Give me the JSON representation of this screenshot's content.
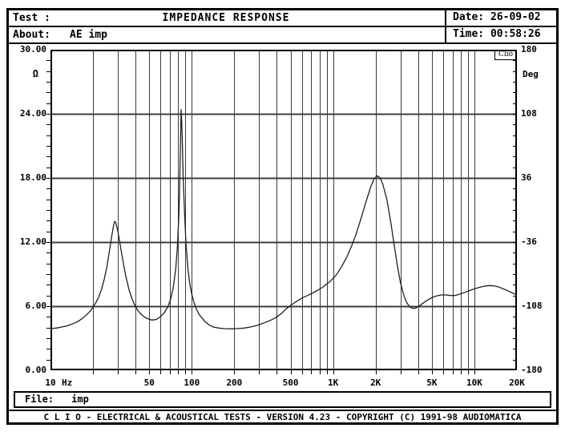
{
  "window": {
    "header": {
      "test_label": "Test :",
      "title": "IMPEDANCE RESPONSE",
      "date_label": "Date:",
      "date_value": "26-09-02",
      "about_label": "About:",
      "about_value": "AE imp",
      "time_label": "Time:",
      "time_value": "00:58:26"
    },
    "file_bar": {
      "label": "File:",
      "value": "imp"
    },
    "status_bar": {
      "text": "C L I O  -  ELECTRICAL & ACOUSTICAL TESTS  -  VERSION 4.23  -  COPYRIGHT (C) 1991-98 AUDIOMATICA"
    },
    "watermark": "Clio"
  },
  "colors": {
    "background": "#ffffff",
    "foreground": "#000000",
    "grid": "#3c3c3c",
    "curve": "#1f1f1f"
  },
  "chart_data": {
    "type": "line",
    "title": "IMPEDANCE RESPONSE",
    "xlabel": "Hz",
    "x_axis": {
      "scale": "log",
      "min": 10,
      "max": 20000,
      "unit": "Hz",
      "tick_values": [
        10,
        50,
        100,
        200,
        500,
        1000,
        2000,
        5000,
        10000,
        20000
      ],
      "tick_labels": [
        "10",
        "50",
        "100",
        "200",
        "500",
        "1K",
        "2K",
        "5K",
        "10K",
        "20K"
      ],
      "gridline_values": [
        20,
        30,
        40,
        50,
        60,
        70,
        80,
        90,
        100,
        200,
        300,
        400,
        500,
        600,
        700,
        800,
        900,
        1000,
        2000,
        3000,
        4000,
        5000,
        6000,
        7000,
        8000,
        9000,
        10000
      ]
    },
    "y_left": {
      "unit": "Ω",
      "min": 0,
      "max": 30,
      "tick_values": [
        30,
        24,
        18,
        12,
        6,
        0
      ],
      "tick_labels": [
        "30.00",
        "24.00",
        "18.00",
        "12.00",
        "6.00",
        "0.00"
      ],
      "minor_step": 1
    },
    "y_right": {
      "unit": "Deg",
      "min": -180,
      "max": 180,
      "tick_values": [
        180,
        108,
        36,
        -36,
        -108,
        -180
      ],
      "tick_labels": [
        "180",
        "108",
        "36",
        "-36",
        "-108",
        "-180"
      ],
      "minor_step": 12
    },
    "grid": true,
    "legend": "none",
    "series": [
      {
        "name": "impedance-magnitude",
        "unit": "ohm",
        "points": [
          [
            10,
            3.9
          ],
          [
            11,
            3.95
          ],
          [
            12,
            4.05
          ],
          [
            13,
            4.15
          ],
          [
            14,
            4.3
          ],
          [
            15,
            4.45
          ],
          [
            16,
            4.65
          ],
          [
            17,
            4.9
          ],
          [
            18,
            5.2
          ],
          [
            19,
            5.5
          ],
          [
            20,
            5.9
          ],
          [
            21,
            6.35
          ],
          [
            22,
            6.9
          ],
          [
            23,
            7.6
          ],
          [
            24,
            8.5
          ],
          [
            25,
            9.6
          ],
          [
            26,
            11.0
          ],
          [
            27,
            12.4
          ],
          [
            28,
            13.6
          ],
          [
            28.5,
            13.95
          ],
          [
            29,
            13.8
          ],
          [
            30,
            13.0
          ],
          [
            31,
            11.9
          ],
          [
            32,
            10.8
          ],
          [
            33,
            9.8
          ],
          [
            34,
            8.9
          ],
          [
            36,
            7.5
          ],
          [
            38,
            6.6
          ],
          [
            40,
            5.95
          ],
          [
            42,
            5.5
          ],
          [
            45,
            5.1
          ],
          [
            48,
            4.85
          ],
          [
            52,
            4.7
          ],
          [
            56,
            4.75
          ],
          [
            60,
            5.0
          ],
          [
            64,
            5.4
          ],
          [
            68,
            6.0
          ],
          [
            71,
            6.7
          ],
          [
            74,
            7.8
          ],
          [
            77,
            9.5
          ],
          [
            79,
            11.5
          ],
          [
            81,
            14.5
          ],
          [
            82,
            17.0
          ],
          [
            83,
            20.5
          ],
          [
            84,
            24.4
          ],
          [
            85,
            23.0
          ],
          [
            86,
            20.5
          ],
          [
            87,
            18.0
          ],
          [
            89,
            14.5
          ],
          [
            91,
            11.8
          ],
          [
            94,
            9.4
          ],
          [
            97,
            8.0
          ],
          [
            100,
            7.1
          ],
          [
            104,
            6.3
          ],
          [
            108,
            5.7
          ],
          [
            113,
            5.2
          ],
          [
            118,
            4.9
          ],
          [
            124,
            4.55
          ],
          [
            132,
            4.25
          ],
          [
            142,
            4.05
          ],
          [
            155,
            3.95
          ],
          [
            170,
            3.9
          ],
          [
            190,
            3.88
          ],
          [
            210,
            3.9
          ],
          [
            235,
            3.95
          ],
          [
            260,
            4.05
          ],
          [
            290,
            4.2
          ],
          [
            320,
            4.4
          ],
          [
            350,
            4.6
          ],
          [
            390,
            4.9
          ],
          [
            430,
            5.3
          ],
          [
            470,
            5.8
          ],
          [
            510,
            6.15
          ],
          [
            560,
            6.5
          ],
          [
            610,
            6.8
          ],
          [
            660,
            7.0
          ],
          [
            710,
            7.2
          ],
          [
            780,
            7.5
          ],
          [
            850,
            7.8
          ],
          [
            950,
            8.3
          ],
          [
            1050,
            8.9
          ],
          [
            1150,
            9.7
          ],
          [
            1250,
            10.6
          ],
          [
            1350,
            11.6
          ],
          [
            1450,
            12.7
          ],
          [
            1550,
            13.9
          ],
          [
            1650,
            15.1
          ],
          [
            1750,
            16.2
          ],
          [
            1850,
            17.2
          ],
          [
            1950,
            17.9
          ],
          [
            2050,
            18.2
          ],
          [
            2150,
            18.0
          ],
          [
            2250,
            17.4
          ],
          [
            2400,
            16.0
          ],
          [
            2550,
            14.0
          ],
          [
            2700,
            11.8
          ],
          [
            2850,
            9.8
          ],
          [
            3000,
            8.2
          ],
          [
            3150,
            7.1
          ],
          [
            3300,
            6.4
          ],
          [
            3500,
            5.9
          ],
          [
            3700,
            5.78
          ],
          [
            3900,
            5.85
          ],
          [
            4100,
            6.05
          ],
          [
            4400,
            6.35
          ],
          [
            4700,
            6.6
          ],
          [
            5000,
            6.8
          ],
          [
            5400,
            6.95
          ],
          [
            5800,
            7.05
          ],
          [
            6300,
            7.05
          ],
          [
            6800,
            7.0
          ],
          [
            7300,
            7.0
          ],
          [
            7800,
            7.1
          ],
          [
            8400,
            7.25
          ],
          [
            9000,
            7.4
          ],
          [
            9700,
            7.55
          ],
          [
            10500,
            7.7
          ],
          [
            11300,
            7.82
          ],
          [
            12000,
            7.9
          ],
          [
            13000,
            7.93
          ],
          [
            14000,
            7.88
          ],
          [
            15000,
            7.78
          ],
          [
            16000,
            7.62
          ],
          [
            17000,
            7.48
          ],
          [
            18000,
            7.32
          ],
          [
            19000,
            7.18
          ],
          [
            20000,
            7.05
          ]
        ]
      }
    ]
  }
}
